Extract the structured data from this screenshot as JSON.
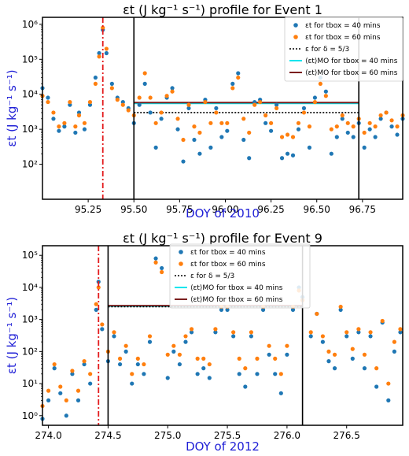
{
  "chart_data": [
    {
      "type": "scatter",
      "title": "εt (J kg⁻¹ s⁻¹) profile for Event 1",
      "xlabel": "DOY of 2010",
      "ylabel": "εt (J kg⁻¹ s⁻¹)",
      "xlim": [
        95.0,
        96.97
      ],
      "ylim_log10": [
        1.0,
        6.2
      ],
      "yscale": "log",
      "xticks": [
        "95.25",
        "95.50",
        "95.75",
        "96.00",
        "96.25",
        "96.50",
        "96.75"
      ],
      "yticks": [
        "10²",
        "10³",
        "10⁴",
        "10⁵",
        "10⁶"
      ],
      "vlines_black": [
        95.5,
        96.73
      ],
      "vline_red": 95.33,
      "mo_interval": [
        95.5,
        96.73
      ],
      "hline_eps53": 3000,
      "hline_mo_40": 5500,
      "hline_mo_60": 5800,
      "legend": [
        "εt for tbox = 40 mins",
        "εt for tbox = 60 mins",
        "ε for δ = 5/3",
        "⟨εt⟩MO for tbox = 40 mins",
        "⟨εt⟩MO for tbox = 60 mins"
      ],
      "legend_position": "top-right",
      "series": [
        {
          "name": "εt for tbox = 40 mins",
          "x": [
            95.0,
            95.03,
            95.06,
            95.09,
            95.12,
            95.15,
            95.18,
            95.2,
            95.23,
            95.26,
            95.29,
            95.31,
            95.33,
            95.35,
            95.38,
            95.41,
            95.44,
            95.47,
            95.5,
            95.53,
            95.56,
            95.59,
            95.62,
            95.65,
            95.68,
            95.71,
            95.74,
            95.77,
            95.8,
            95.83,
            95.86,
            95.89,
            95.92,
            95.95,
            95.98,
            96.01,
            96.04,
            96.07,
            96.1,
            96.13,
            96.16,
            96.19,
            96.22,
            96.25,
            96.28,
            96.31,
            96.34,
            96.37,
            96.4,
            96.43,
            96.46,
            96.49,
            96.52,
            96.55,
            96.58,
            96.61,
            96.64,
            96.67,
            96.7,
            96.73,
            96.76,
            96.79,
            96.82,
            96.85,
            96.88,
            96.91,
            96.94,
            96.97
          ],
          "y": [
            15000,
            8000,
            2000,
            900,
            1200,
            5000,
            800,
            3000,
            1000,
            5000,
            30000,
            150000,
            700000,
            150000,
            20000,
            8000,
            6000,
            4000,
            1500,
            5000,
            20000,
            3000,
            300,
            2000,
            8000,
            15000,
            1000,
            120,
            4000,
            500,
            200,
            7000,
            300,
            4000,
            600,
            900,
            20000,
            40000,
            500,
            150,
            6000,
            7000,
            1500,
            900,
            5000,
            150,
            200,
            180,
            1000,
            4000,
            300,
            8000,
            30000,
            12000,
            200,
            600,
            2000,
            800,
            600,
            1500,
            300,
            1000,
            600,
            2000,
            3000,
            1200,
            700,
            2000
          ]
        },
        {
          "name": "εt for tbox = 60 mins",
          "x": [
            95.0,
            95.03,
            95.06,
            95.09,
            95.12,
            95.15,
            95.18,
            95.2,
            95.23,
            95.26,
            95.29,
            95.31,
            95.33,
            95.35,
            95.38,
            95.41,
            95.44,
            95.47,
            95.5,
            95.53,
            95.56,
            95.59,
            95.62,
            95.65,
            95.68,
            95.71,
            95.74,
            95.77,
            95.8,
            95.83,
            95.86,
            95.89,
            95.92,
            95.95,
            95.98,
            96.01,
            96.04,
            96.07,
            96.1,
            96.13,
            96.16,
            96.19,
            96.22,
            96.25,
            96.28,
            96.31,
            96.34,
            96.37,
            96.4,
            96.43,
            96.46,
            96.49,
            96.52,
            96.55,
            96.58,
            96.61,
            96.64,
            96.67,
            96.7,
            96.73,
            96.76,
            96.79,
            96.82,
            96.85,
            96.88,
            96.91,
            96.94,
            96.97
          ],
          "y": [
            9000,
            6000,
            3000,
            1200,
            1500,
            6000,
            1200,
            2500,
            1500,
            6000,
            20000,
            120000,
            800000,
            200000,
            15000,
            7000,
            5000,
            3500,
            2500,
            8000,
            40000,
            8000,
            1500,
            3000,
            9000,
            12000,
            2000,
            500,
            5000,
            1200,
            800,
            6000,
            1500,
            3000,
            1500,
            1500,
            15000,
            30000,
            2000,
            800,
            5000,
            6000,
            2500,
            1500,
            4000,
            600,
            700,
            600,
            1500,
            3000,
            1200,
            6000,
            20000,
            9000,
            1000,
            1200,
            2500,
            1500,
            1200,
            2000,
            800,
            1500,
            1200,
            2500,
            3000,
            1800,
            1200,
            2500
          ]
        }
      ]
    },
    {
      "type": "scatter",
      "title": "εt (J kg⁻¹ s⁻¹) profile for Event 9",
      "xlabel": "DOY of 2012",
      "ylabel": "εt (J kg⁻¹ s⁻¹)",
      "xlim": [
        273.95,
        276.97
      ],
      "ylim_log10": [
        -0.3,
        5.3
      ],
      "yscale": "log",
      "xticks": [
        "274.0",
        "274.5",
        "275.0",
        "275.5",
        "276.0",
        "276.5"
      ],
      "yticks": [
        "10⁰",
        "10¹",
        "10²",
        "10³",
        "10⁴",
        "10⁵"
      ],
      "vlines_black": [
        274.5,
        276.13
      ],
      "vline_red": 274.42,
      "mo_interval": [
        274.5,
        276.13
      ],
      "hline_eps53": 2500,
      "hline_mo_40": 2600,
      "hline_mo_60": 2700,
      "legend": [
        "εt for tbox = 40 mins",
        "εt for tbox = 60 mins",
        "ε for δ = 5/3",
        "⟨εt⟩MO for tbox = 40 mins",
        "⟨εt⟩MO for tbox = 60 mins"
      ],
      "legend_position": "top-center",
      "series": [
        {
          "name": "εt for tbox = 40 mins",
          "x": [
            273.95,
            274.0,
            274.05,
            274.1,
            274.15,
            274.2,
            274.25,
            274.3,
            274.35,
            274.4,
            274.42,
            274.45,
            274.5,
            274.55,
            274.6,
            274.65,
            274.7,
            274.75,
            274.8,
            274.85,
            274.9,
            274.95,
            275.0,
            275.05,
            275.1,
            275.15,
            275.2,
            275.25,
            275.3,
            275.35,
            275.4,
            275.45,
            275.5,
            275.55,
            275.6,
            275.65,
            275.7,
            275.75,
            275.8,
            275.85,
            275.9,
            275.95,
            276.0,
            276.05,
            276.1,
            276.13,
            276.2,
            276.25,
            276.3,
            276.35,
            276.4,
            276.45,
            276.5,
            276.55,
            276.6,
            276.65,
            276.7,
            276.75,
            276.8,
            276.85,
            276.9,
            276.95
          ],
          "y": [
            0.8,
            3,
            30,
            5,
            1,
            20,
            3,
            40,
            10,
            2000,
            15000,
            500,
            50,
            300,
            40,
            100,
            10,
            40,
            20,
            200,
            80000,
            40000,
            15,
            100,
            40,
            200,
            400,
            20,
            30,
            15,
            400,
            2000,
            2000,
            300,
            20,
            8,
            300,
            20,
            2000,
            80,
            20,
            5,
            80,
            2000,
            10000,
            5000,
            300,
            1500,
            200,
            50,
            30,
            2000,
            300,
            60,
            400,
            30,
            300,
            8,
            800,
            3,
            100,
            400
          ]
        },
        {
          "name": "εt for tbox = 60 mins",
          "x": [
            273.95,
            274.0,
            274.05,
            274.1,
            274.15,
            274.2,
            274.25,
            274.3,
            274.35,
            274.4,
            274.42,
            274.45,
            274.5,
            274.55,
            274.6,
            274.65,
            274.7,
            274.75,
            274.8,
            274.85,
            274.9,
            274.95,
            275.0,
            275.05,
            275.1,
            275.15,
            275.2,
            275.25,
            275.3,
            275.35,
            275.4,
            275.45,
            275.5,
            275.55,
            275.6,
            275.65,
            275.7,
            275.75,
            275.8,
            275.85,
            275.9,
            275.95,
            276.0,
            276.05,
            276.1,
            276.13,
            276.2,
            276.25,
            276.3,
            276.35,
            276.4,
            276.45,
            276.5,
            276.55,
            276.6,
            276.65,
            276.7,
            276.75,
            276.8,
            276.85,
            276.9,
            276.95
          ],
          "y": [
            2,
            6,
            40,
            8,
            3,
            25,
            6,
            50,
            20,
            3000,
            10000,
            700,
            100,
            400,
            60,
            150,
            20,
            60,
            40,
            300,
            60000,
            30000,
            80,
            150,
            80,
            300,
            500,
            60,
            60,
            40,
            500,
            2500,
            2500,
            400,
            60,
            30,
            400,
            60,
            2500,
            150,
            60,
            20,
            150,
            2500,
            8000,
            4000,
            400,
            1500,
            300,
            100,
            80,
            2500,
            400,
            120,
            500,
            80,
            400,
            30,
            900,
            10,
            200,
            500
          ]
        }
      ]
    }
  ]
}
